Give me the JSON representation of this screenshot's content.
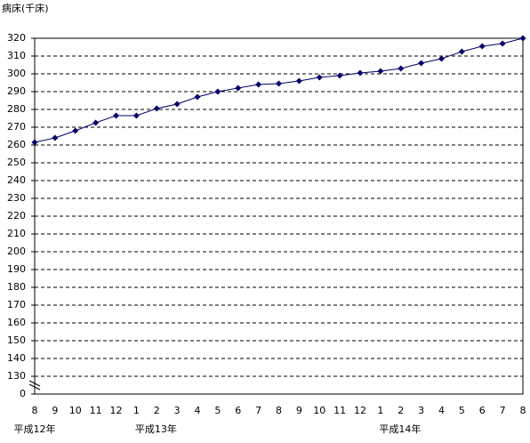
{
  "chart_data": {
    "type": "line",
    "y_axis_label": "病床(千床)",
    "categories": [
      "8",
      "9",
      "10",
      "11",
      "12",
      "1",
      "2",
      "3",
      "4",
      "5",
      "6",
      "7",
      "8",
      "9",
      "10",
      "11",
      "12",
      "1",
      "2",
      "3",
      "4",
      "5",
      "6",
      "7",
      "8"
    ],
    "groups": [
      {
        "label": "平成12年",
        "start": 0
      },
      {
        "label": "平成13年",
        "start": 5
      },
      {
        "label": "平成14年",
        "start": 17
      }
    ],
    "series": [
      {
        "name": "病床",
        "color": "#000066",
        "values": [
          261.5,
          264,
          268,
          272.5,
          276.5,
          276.5,
          280.5,
          283,
          287,
          290,
          292,
          294,
          294.5,
          296,
          298,
          299,
          300.5,
          301.5,
          303,
          306,
          308.5,
          312.5,
          315.5,
          317,
          320
        ]
      }
    ],
    "ylim": [
      0,
      320
    ],
    "y_break": 130,
    "yticks": [
      0,
      130,
      140,
      150,
      160,
      170,
      180,
      190,
      200,
      210,
      220,
      230,
      240,
      250,
      260,
      270,
      280,
      290,
      300,
      310,
      320
    ],
    "grid": true
  }
}
